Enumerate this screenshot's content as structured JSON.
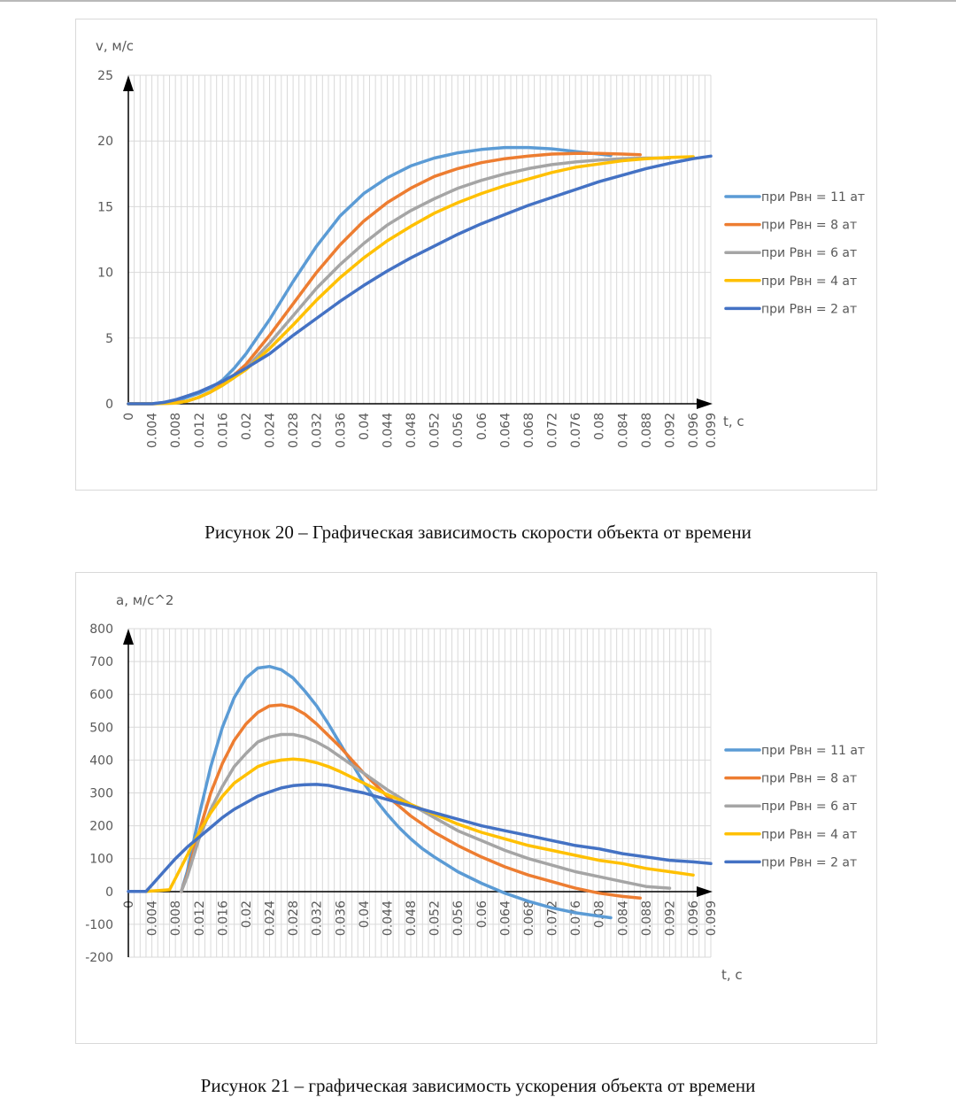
{
  "captions": {
    "fig20": "Рисунок 20 – Графическая зависимость скорости объекта от времени",
    "fig21": "Рисунок 21 – графическая зависимость ускорения объекта от времени"
  },
  "chart_data": [
    {
      "type": "line",
      "id": "velocity",
      "title": "",
      "xlabel": "t, c",
      "ylabel": "v, м/с",
      "xlim": [
        0,
        0.099
      ],
      "ylim": [
        0,
        25
      ],
      "yticks": [
        0,
        5,
        10,
        15,
        20,
        25
      ],
      "xticks": [
        "0",
        "0.004",
        "0.008",
        "0.012",
        "0.016",
        "0.02",
        "0.024",
        "0.028",
        "0.032",
        "0.036",
        "0.04",
        "0.044",
        "0.048",
        "0.052",
        "0.056",
        "0.06",
        "0.064",
        "0.068",
        "0.072",
        "0.076",
        "0.08",
        "0.084",
        "0.088",
        "0.092",
        "0.096",
        "0.099"
      ],
      "grid": true,
      "legend_position": "right",
      "series": [
        {
          "name": "при Рвн = 11 ат",
          "color": "#5b9bd5",
          "x": [
            0,
            0.004,
            0.008,
            0.01,
            0.012,
            0.014,
            0.016,
            0.018,
            0.02,
            0.024,
            0.028,
            0.032,
            0.036,
            0.04,
            0.044,
            0.048,
            0.052,
            0.056,
            0.06,
            0.064,
            0.068,
            0.072,
            0.076,
            0.08,
            0.082
          ],
          "y": [
            0,
            0,
            0.2,
            0.5,
            0.8,
            1.2,
            1.8,
            2.7,
            3.8,
            6.4,
            9.3,
            12.0,
            14.3,
            16.0,
            17.2,
            18.1,
            18.7,
            19.1,
            19.35,
            19.5,
            19.5,
            19.4,
            19.2,
            19.0,
            18.9
          ]
        },
        {
          "name": "при Рвн = 8 ат",
          "color": "#ed7d31",
          "x": [
            0,
            0.004,
            0.008,
            0.01,
            0.012,
            0.014,
            0.016,
            0.018,
            0.02,
            0.024,
            0.028,
            0.032,
            0.036,
            0.04,
            0.044,
            0.048,
            0.052,
            0.056,
            0.06,
            0.064,
            0.068,
            0.072,
            0.076,
            0.08,
            0.084,
            0.087
          ],
          "y": [
            0,
            0,
            0.1,
            0.2,
            0.5,
            0.9,
            1.5,
            2.2,
            3.0,
            5.2,
            7.6,
            10.0,
            12.1,
            13.9,
            15.3,
            16.4,
            17.3,
            17.9,
            18.35,
            18.65,
            18.85,
            19.0,
            19.05,
            19.05,
            19.0,
            18.95
          ]
        },
        {
          "name": "при Рвн = 6 ат",
          "color": "#a5a5a5",
          "x": [
            0,
            0.004,
            0.008,
            0.01,
            0.012,
            0.014,
            0.016,
            0.018,
            0.02,
            0.024,
            0.028,
            0.032,
            0.036,
            0.04,
            0.044,
            0.048,
            0.052,
            0.056,
            0.06,
            0.064,
            0.068,
            0.072,
            0.076,
            0.08,
            0.084,
            0.088,
            0.092
          ],
          "y": [
            0,
            0,
            0.05,
            0.2,
            0.5,
            0.9,
            1.4,
            2.0,
            2.7,
            4.6,
            6.7,
            8.8,
            10.6,
            12.2,
            13.6,
            14.7,
            15.6,
            16.4,
            17.0,
            17.5,
            17.9,
            18.2,
            18.4,
            18.55,
            18.65,
            18.7,
            18.7
          ]
        },
        {
          "name": "при Рвн = 4 ат",
          "color": "#ffc000",
          "x": [
            0,
            0.004,
            0.008,
            0.01,
            0.012,
            0.014,
            0.016,
            0.018,
            0.02,
            0.024,
            0.028,
            0.032,
            0.036,
            0.04,
            0.044,
            0.048,
            0.052,
            0.056,
            0.06,
            0.064,
            0.068,
            0.072,
            0.076,
            0.08,
            0.084,
            0.088,
            0.092,
            0.096
          ],
          "y": [
            0,
            0,
            0.05,
            0.2,
            0.5,
            0.9,
            1.4,
            2.0,
            2.6,
            4.2,
            6.0,
            7.9,
            9.6,
            11.1,
            12.4,
            13.5,
            14.5,
            15.3,
            16.0,
            16.6,
            17.1,
            17.6,
            18.0,
            18.25,
            18.5,
            18.65,
            18.75,
            18.8
          ]
        },
        {
          "name": "при Рвн = 2 ат",
          "color": "#4472c4",
          "x": [
            0,
            0.004,
            0.006,
            0.008,
            0.01,
            0.012,
            0.014,
            0.016,
            0.018,
            0.02,
            0.024,
            0.028,
            0.032,
            0.036,
            0.04,
            0.044,
            0.048,
            0.052,
            0.056,
            0.06,
            0.064,
            0.068,
            0.072,
            0.076,
            0.08,
            0.084,
            0.088,
            0.092,
            0.096,
            0.099
          ],
          "y": [
            0,
            0,
            0.1,
            0.3,
            0.6,
            0.9,
            1.3,
            1.7,
            2.2,
            2.7,
            3.8,
            5.2,
            6.5,
            7.8,
            9.0,
            10.1,
            11.1,
            12.0,
            12.9,
            13.7,
            14.4,
            15.1,
            15.7,
            16.3,
            16.9,
            17.4,
            17.9,
            18.3,
            18.65,
            18.85
          ]
        }
      ]
    },
    {
      "type": "line",
      "id": "acceleration",
      "title": "",
      "xlabel": "t, c",
      "ylabel": "a, м/с^2",
      "xlim": [
        0,
        0.099
      ],
      "ylim": [
        -200,
        800
      ],
      "yticks": [
        -200,
        -100,
        0,
        100,
        200,
        300,
        400,
        500,
        600,
        700,
        800
      ],
      "xticks": [
        "0",
        "0.004",
        "0.008",
        "0.012",
        "0.016",
        "0.02",
        "0.024",
        "0.028",
        "0.032",
        "0.036",
        "0.04",
        "0.044",
        "0.048",
        "0.052",
        "0.056",
        "0.06",
        "0.064",
        "0.068",
        "0.072",
        "0.076",
        "0.08",
        "0.084",
        "0.088",
        "0.092",
        "0.096",
        "0.099"
      ],
      "grid": true,
      "legend_position": "right",
      "series": [
        {
          "name": "при Рвн = 11 ат",
          "color": "#5b9bd5",
          "x": [
            0.009,
            0.01,
            0.012,
            0.014,
            0.016,
            0.018,
            0.02,
            0.022,
            0.024,
            0.026,
            0.028,
            0.03,
            0.032,
            0.034,
            0.036,
            0.038,
            0.04,
            0.042,
            0.044,
            0.046,
            0.048,
            0.05,
            0.052,
            0.056,
            0.06,
            0.064,
            0.068,
            0.072,
            0.076,
            0.08,
            0.082
          ],
          "y": [
            0,
            60,
            230,
            380,
            500,
            590,
            650,
            680,
            685,
            675,
            650,
            610,
            565,
            510,
            450,
            390,
            330,
            280,
            235,
            195,
            160,
            130,
            105,
            60,
            25,
            -5,
            -30,
            -50,
            -65,
            -75,
            -80
          ]
        },
        {
          "name": "при Рвн = 8 ат",
          "color": "#ed7d31",
          "x": [
            0.009,
            0.01,
            0.012,
            0.014,
            0.016,
            0.018,
            0.02,
            0.022,
            0.024,
            0.026,
            0.028,
            0.03,
            0.032,
            0.034,
            0.036,
            0.038,
            0.04,
            0.042,
            0.044,
            0.046,
            0.048,
            0.052,
            0.056,
            0.06,
            0.064,
            0.068,
            0.072,
            0.076,
            0.08,
            0.084,
            0.087
          ],
          "y": [
            0,
            50,
            180,
            300,
            390,
            460,
            510,
            545,
            565,
            568,
            560,
            540,
            510,
            475,
            440,
            400,
            360,
            325,
            290,
            260,
            230,
            180,
            140,
            105,
            75,
            50,
            30,
            10,
            -5,
            -15,
            -20
          ]
        },
        {
          "name": "при Рвн = 6 ат",
          "color": "#a5a5a5",
          "x": [
            0.009,
            0.01,
            0.012,
            0.014,
            0.016,
            0.018,
            0.02,
            0.022,
            0.024,
            0.026,
            0.028,
            0.03,
            0.032,
            0.034,
            0.036,
            0.038,
            0.04,
            0.044,
            0.048,
            0.052,
            0.056,
            0.06,
            0.064,
            0.068,
            0.072,
            0.076,
            0.08,
            0.084,
            0.088,
            0.092
          ],
          "y": [
            0,
            45,
            160,
            250,
            320,
            380,
            420,
            455,
            470,
            478,
            478,
            470,
            455,
            435,
            410,
            385,
            360,
            310,
            265,
            225,
            185,
            155,
            125,
            100,
            80,
            60,
            45,
            30,
            15,
            10
          ]
        },
        {
          "name": "при Рвн = 4 ат",
          "color": "#ffc000",
          "x": [
            0.003,
            0.007,
            0.008,
            0.01,
            0.012,
            0.014,
            0.016,
            0.018,
            0.02,
            0.022,
            0.024,
            0.026,
            0.028,
            0.03,
            0.032,
            0.034,
            0.036,
            0.04,
            0.044,
            0.048,
            0.052,
            0.056,
            0.06,
            0.064,
            0.068,
            0.072,
            0.076,
            0.08,
            0.084,
            0.088,
            0.092,
            0.096
          ],
          "y": [
            0,
            5,
            40,
            110,
            180,
            240,
            290,
            330,
            355,
            380,
            393,
            400,
            403,
            400,
            392,
            380,
            365,
            330,
            295,
            265,
            235,
            205,
            180,
            160,
            140,
            125,
            110,
            95,
            85,
            70,
            60,
            50
          ]
        },
        {
          "name": "при Рвн = 2 ат",
          "color": "#4472c4",
          "x": [
            0,
            0.003,
            0.004,
            0.006,
            0.008,
            0.01,
            0.012,
            0.014,
            0.016,
            0.018,
            0.02,
            0.022,
            0.024,
            0.026,
            0.028,
            0.03,
            0.032,
            0.034,
            0.036,
            0.038,
            0.04,
            0.044,
            0.048,
            0.052,
            0.056,
            0.06,
            0.064,
            0.068,
            0.072,
            0.076,
            0.08,
            0.084,
            0.088,
            0.092,
            0.096,
            0.099
          ],
          "y": [
            0,
            0,
            20,
            60,
            100,
            135,
            165,
            195,
            225,
            250,
            270,
            290,
            303,
            315,
            322,
            325,
            326,
            323,
            315,
            307,
            300,
            280,
            260,
            240,
            220,
            200,
            185,
            170,
            155,
            140,
            130,
            115,
            105,
            95,
            90,
            85
          ]
        }
      ]
    }
  ]
}
